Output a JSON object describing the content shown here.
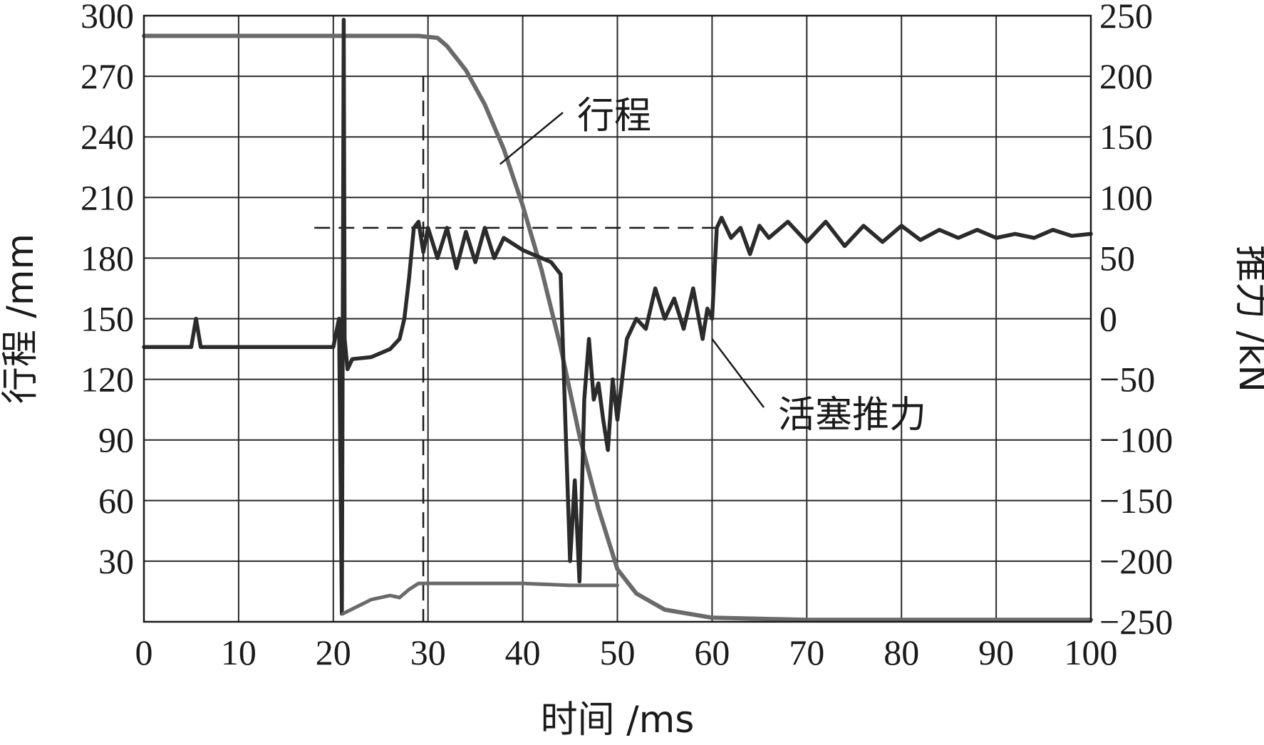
{
  "chart_data": {
    "type": "line",
    "title": "",
    "xlabel": "时间 /ms",
    "ylabel": "行程 /mm",
    "y2label": "推力 /kN",
    "xlim": [
      0,
      100
    ],
    "ylim": [
      0,
      300
    ],
    "y2lim": [
      -250,
      250
    ],
    "x_ticks": [
      "0",
      "10",
      "20",
      "30",
      "40",
      "50",
      "60",
      "70",
      "80",
      "90",
      "100"
    ],
    "y_ticks": [
      "300",
      "270",
      "240",
      "210",
      "180",
      "150",
      "120",
      "90",
      "60",
      "30"
    ],
    "y2_ticks": [
      "250",
      "200",
      "150",
      "100",
      "50",
      "0",
      "−50",
      "−100",
      "−150",
      "−200",
      "−250"
    ],
    "grid": true,
    "annotations": [
      {
        "text": "行程",
        "points_to": {
          "x": 37,
          "y": 230
        }
      },
      {
        "text": "活塞推力",
        "points_to": {
          "x": 60,
          "y": 140
        }
      }
    ],
    "reference_lines": [
      {
        "type": "vertical",
        "x": 29.5,
        "y_range": [
          0,
          270
        ],
        "style": "dashed"
      },
      {
        "type": "horizontal",
        "y": 195,
        "x_range": [
          18,
          61
        ],
        "style": "dashed"
      }
    ],
    "series": [
      {
        "name": "行程",
        "axis": "left",
        "x": [
          0,
          20,
          29,
          31,
          32,
          34,
          36,
          38,
          40,
          42,
          44,
          46,
          48,
          50,
          52,
          55,
          60,
          70,
          80,
          90,
          100
        ],
        "y": [
          290,
          290,
          290,
          289,
          285,
          273,
          256,
          234,
          206,
          174,
          136,
          92,
          56,
          26,
          14,
          6,
          2,
          1,
          1,
          1,
          1
        ]
      },
      {
        "name": "活塞推力",
        "axis": "left",
        "x": [
          0,
          5,
          5.5,
          6,
          20,
          20.6,
          20.9,
          21.1,
          21.2,
          21.5,
          22,
          24,
          26,
          27,
          27.5,
          28,
          28.5,
          29,
          29.5,
          30,
          31,
          32,
          33,
          34,
          35,
          36,
          37,
          38,
          40,
          42,
          43,
          44,
          44.5,
          45,
          45.5,
          46,
          46.5,
          47,
          47.5,
          48,
          48.5,
          49,
          49.5,
          50,
          51,
          52,
          53,
          54,
          55,
          56,
          57,
          58,
          59,
          59.5,
          60,
          60.5,
          61,
          62,
          63,
          64,
          65,
          66,
          68,
          70,
          72,
          74,
          76,
          78,
          80,
          82,
          84,
          86,
          88,
          90,
          92,
          94,
          96,
          98,
          100
        ],
        "y": [
          136,
          136,
          150,
          136,
          136,
          150,
          4,
          298,
          140,
          125,
          130,
          131,
          135,
          140,
          150,
          170,
          195,
          198,
          183,
          195,
          180,
          195,
          175,
          193,
          178,
          195,
          180,
          190,
          184,
          180,
          178,
          172,
          100,
          30,
          70,
          20,
          110,
          140,
          110,
          118,
          100,
          85,
          120,
          100,
          140,
          150,
          145,
          165,
          150,
          160,
          145,
          165,
          140,
          155,
          150,
          195,
          200,
          190,
          195,
          182,
          196,
          190,
          198,
          188,
          198,
          186,
          196,
          188,
          196,
          189,
          194,
          190,
          194,
          190,
          192,
          190,
          194,
          191,
          192
        ]
      },
      {
        "name": "",
        "axis": "left",
        "x": [
          21,
          24,
          26,
          27,
          28,
          29,
          30,
          35,
          40,
          45,
          50
        ],
        "y": [
          4,
          11,
          13,
          12,
          16,
          19,
          19,
          19,
          19,
          18,
          18
        ]
      }
    ]
  }
}
